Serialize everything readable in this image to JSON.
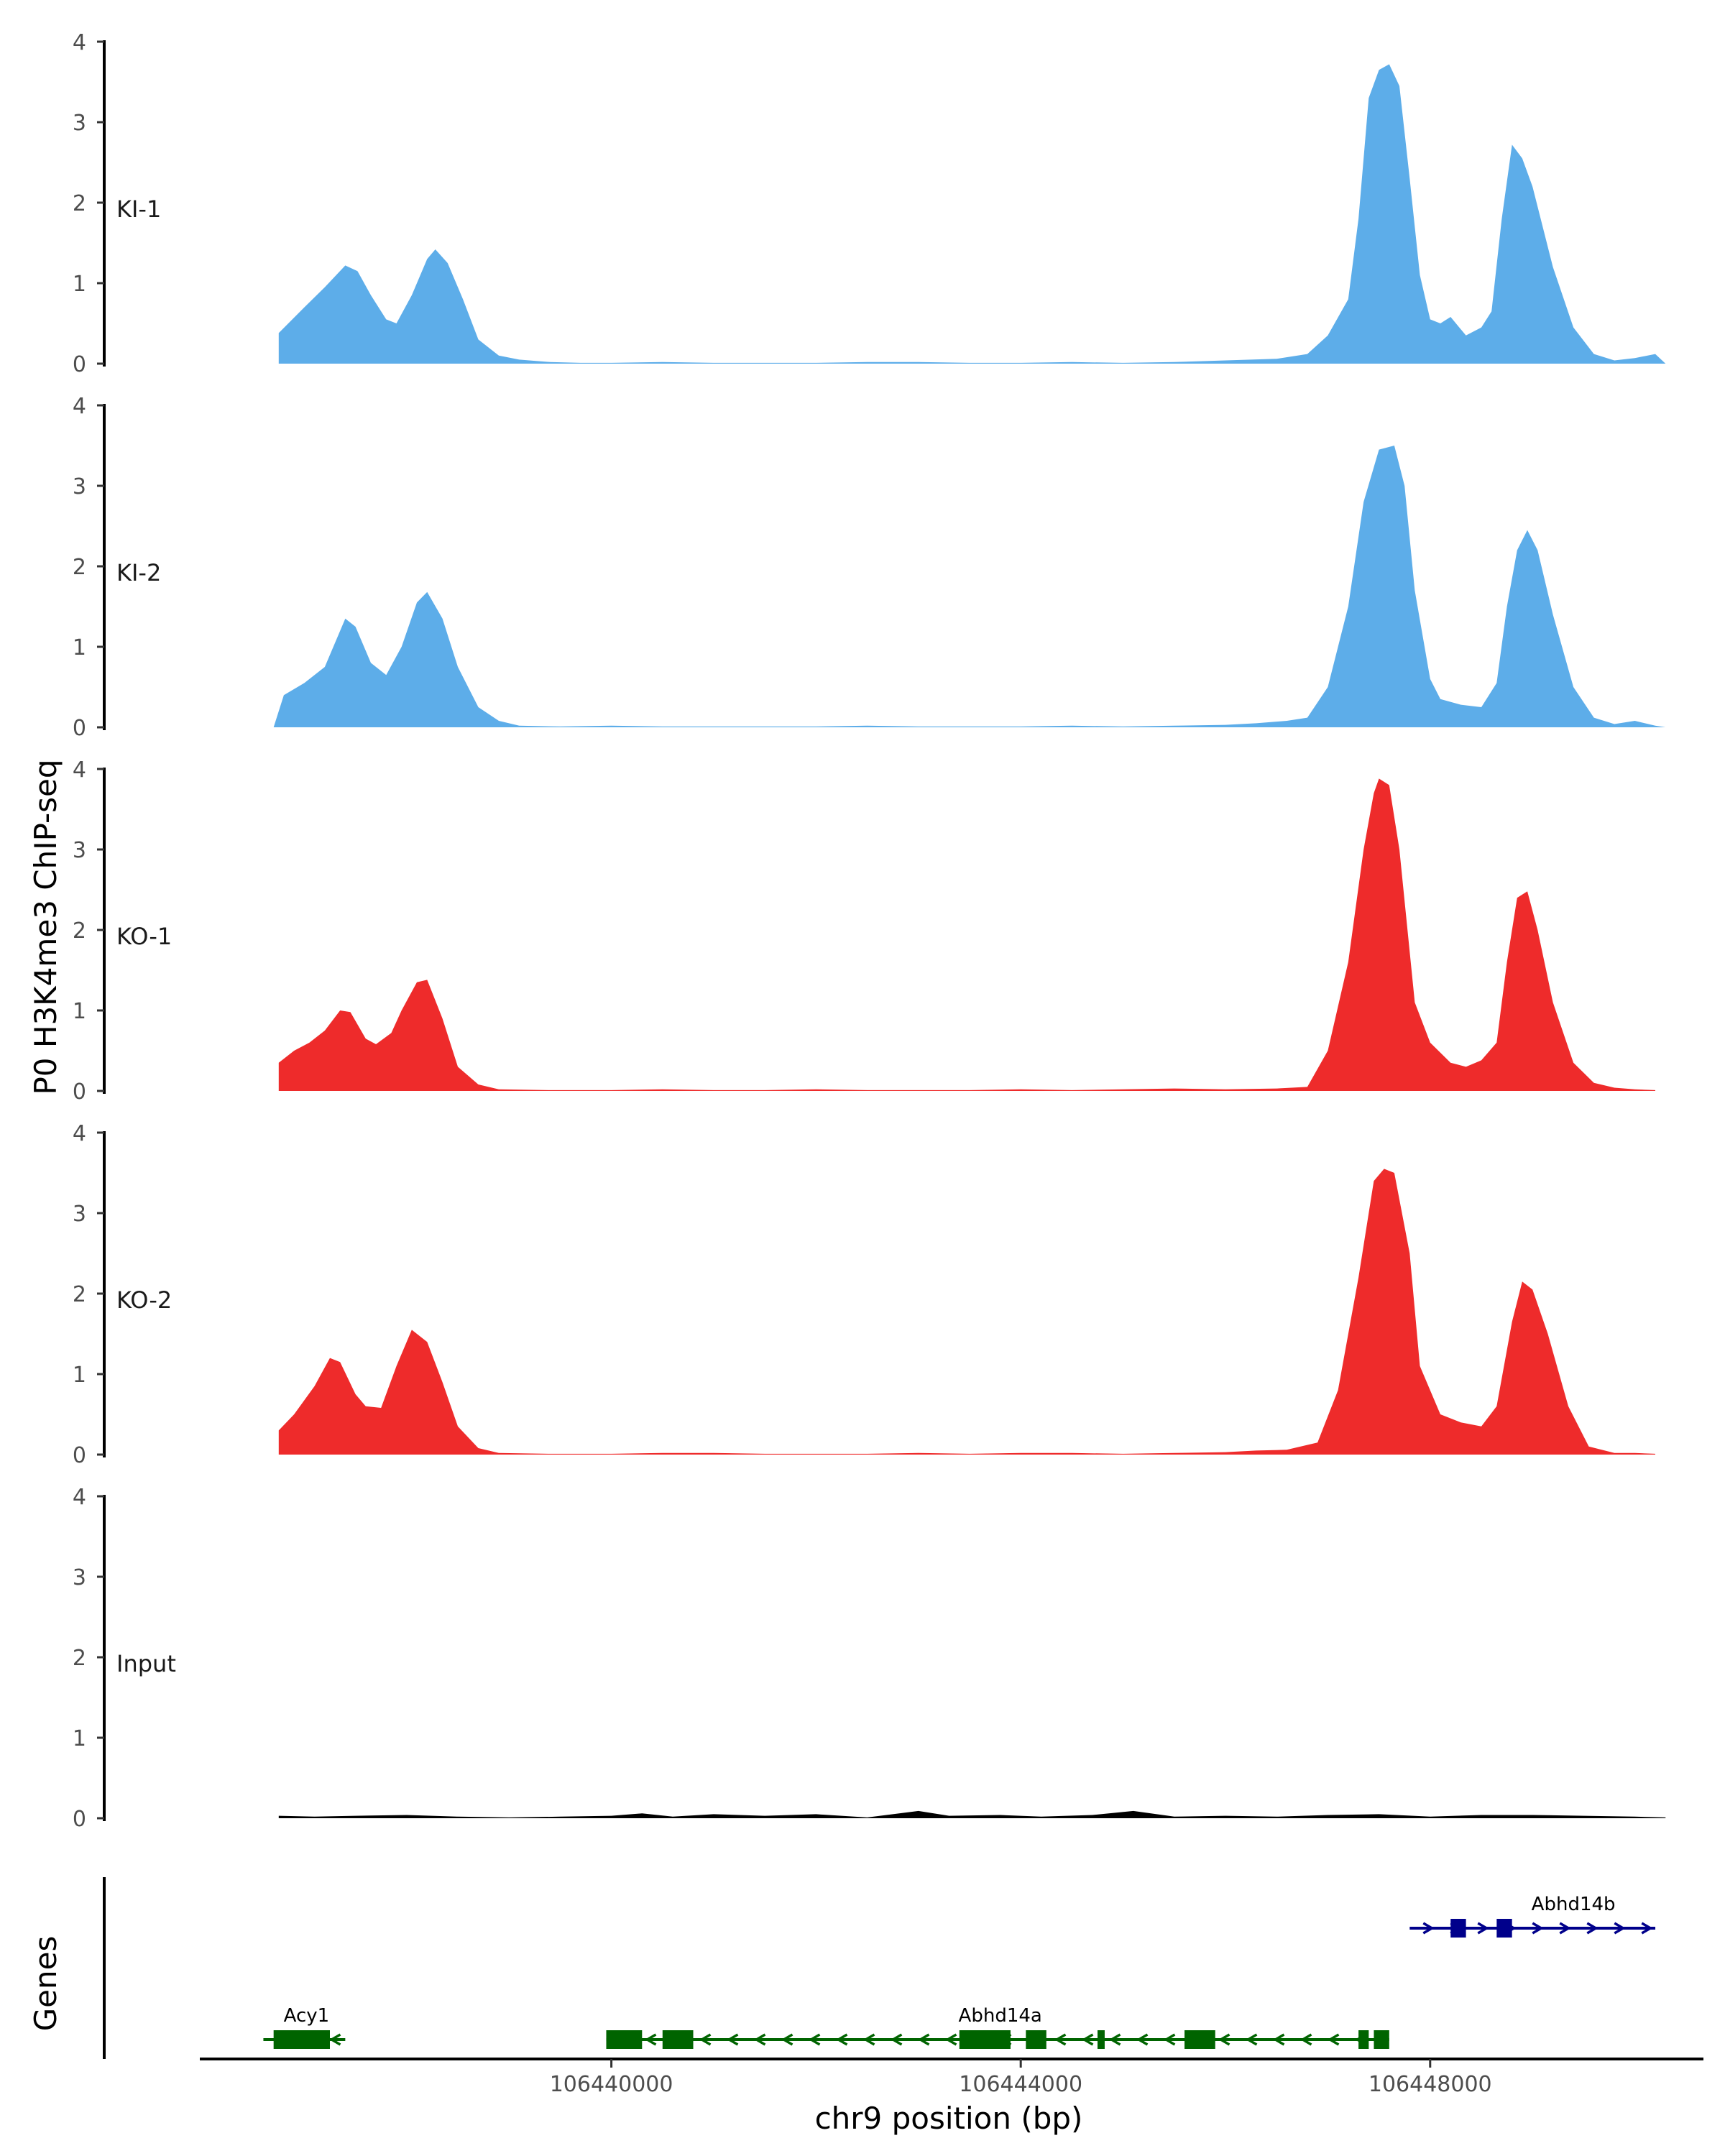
{
  "chart_data": {
    "type": "area",
    "title": "",
    "ylabel": "P0 H3K4me3 ChIP-seq",
    "xlabel": "chr9 position (bp)",
    "chromosome": "chr9",
    "xlim": [
      106436000,
      106450600
    ],
    "ylim": [
      0,
      4
    ],
    "y_ticks": [
      "0",
      "1",
      "2",
      "3",
      "4"
    ],
    "x_ticks": [
      {
        "value": 106440000,
        "label": "106440000"
      },
      {
        "value": 106444000,
        "label": "106444000"
      },
      {
        "value": 106448000,
        "label": "106448000"
      }
    ],
    "series": [
      {
        "name": "KI-1",
        "color": "#5dade9",
        "points": [
          [
            106436750,
            0.38
          ],
          [
            106437000,
            0.7
          ],
          [
            106437200,
            0.95
          ],
          [
            106437400,
            1.22
          ],
          [
            106437520,
            1.15
          ],
          [
            106437650,
            0.85
          ],
          [
            106437800,
            0.55
          ],
          [
            106437900,
            0.5
          ],
          [
            106438050,
            0.85
          ],
          [
            106438200,
            1.3
          ],
          [
            106438280,
            1.42
          ],
          [
            106438400,
            1.25
          ],
          [
            106438550,
            0.8
          ],
          [
            106438700,
            0.3
          ],
          [
            106438900,
            0.1
          ],
          [
            106439100,
            0.05
          ],
          [
            106439400,
            0.02
          ],
          [
            106439700,
            0.01
          ],
          [
            106440000,
            0.01
          ],
          [
            106440500,
            0.02
          ],
          [
            106441000,
            0.01
          ],
          [
            106442000,
            0.01
          ],
          [
            106442500,
            0.02
          ],
          [
            106443000,
            0.02
          ],
          [
            106443500,
            0.01
          ],
          [
            106444000,
            0.01
          ],
          [
            106444500,
            0.02
          ],
          [
            106445000,
            0.01
          ],
          [
            106445500,
            0.02
          ],
          [
            106446000,
            0.04
          ],
          [
            106446500,
            0.06
          ],
          [
            106446800,
            0.12
          ],
          [
            106447000,
            0.35
          ],
          [
            106447200,
            0.8
          ],
          [
            106447300,
            1.8
          ],
          [
            106447400,
            3.3
          ],
          [
            106447500,
            3.65
          ],
          [
            106447600,
            3.72
          ],
          [
            106447700,
            3.45
          ],
          [
            106447800,
            2.3
          ],
          [
            106447900,
            1.1
          ],
          [
            106448000,
            0.55
          ],
          [
            106448100,
            0.5
          ],
          [
            106448200,
            0.58
          ],
          [
            106448350,
            0.35
          ],
          [
            106448500,
            0.45
          ],
          [
            106448600,
            0.65
          ],
          [
            106448700,
            1.8
          ],
          [
            106448800,
            2.72
          ],
          [
            106448900,
            2.55
          ],
          [
            106449000,
            2.2
          ],
          [
            106449200,
            1.2
          ],
          [
            106449400,
            0.45
          ],
          [
            106449600,
            0.12
          ],
          [
            106449800,
            0.04
          ],
          [
            106450000,
            0.07
          ],
          [
            106450200,
            0.12
          ],
          [
            106450300,
            0.0
          ]
        ]
      },
      {
        "name": "KI-2",
        "color": "#5dade9",
        "points": [
          [
            106436700,
            0.0
          ],
          [
            106436800,
            0.4
          ],
          [
            106437000,
            0.55
          ],
          [
            106437200,
            0.75
          ],
          [
            106437400,
            1.35
          ],
          [
            106437500,
            1.25
          ],
          [
            106437650,
            0.8
          ],
          [
            106437800,
            0.65
          ],
          [
            106437950,
            1.0
          ],
          [
            106438100,
            1.55
          ],
          [
            106438200,
            1.68
          ],
          [
            106438350,
            1.35
          ],
          [
            106438500,
            0.75
          ],
          [
            106438700,
            0.25
          ],
          [
            106438900,
            0.08
          ],
          [
            106439100,
            0.02
          ],
          [
            106439500,
            0.01
          ],
          [
            106440000,
            0.02
          ],
          [
            106440500,
            0.01
          ],
          [
            106441000,
            0.01
          ],
          [
            106441500,
            0.01
          ],
          [
            106442000,
            0.01
          ],
          [
            106442500,
            0.02
          ],
          [
            106443000,
            0.01
          ],
          [
            106443500,
            0.01
          ],
          [
            106444000,
            0.01
          ],
          [
            106444500,
            0.02
          ],
          [
            106445000,
            0.01
          ],
          [
            106445500,
            0.02
          ],
          [
            106446000,
            0.03
          ],
          [
            106446300,
            0.05
          ],
          [
            106446600,
            0.08
          ],
          [
            106446800,
            0.12
          ],
          [
            106447000,
            0.5
          ],
          [
            106447200,
            1.5
          ],
          [
            106447350,
            2.8
          ],
          [
            106447500,
            3.45
          ],
          [
            106447650,
            3.5
          ],
          [
            106447750,
            3.0
          ],
          [
            106447850,
            1.7
          ],
          [
            106448000,
            0.6
          ],
          [
            106448100,
            0.35
          ],
          [
            106448300,
            0.28
          ],
          [
            106448500,
            0.25
          ],
          [
            106448650,
            0.55
          ],
          [
            106448750,
            1.5
          ],
          [
            106448850,
            2.2
          ],
          [
            106448950,
            2.45
          ],
          [
            106449050,
            2.2
          ],
          [
            106449200,
            1.4
          ],
          [
            106449400,
            0.5
          ],
          [
            106449600,
            0.12
          ],
          [
            106449800,
            0.04
          ],
          [
            106450000,
            0.08
          ],
          [
            106450200,
            0.02
          ],
          [
            106450300,
            0.0
          ]
        ]
      },
      {
        "name": "KO-1",
        "color": "#ee2b2b",
        "points": [
          [
            106436750,
            0.35
          ],
          [
            106436900,
            0.5
          ],
          [
            106437050,
            0.6
          ],
          [
            106437200,
            0.75
          ],
          [
            106437350,
            1.0
          ],
          [
            106437450,
            0.98
          ],
          [
            106437600,
            0.65
          ],
          [
            106437700,
            0.58
          ],
          [
            106437850,
            0.72
          ],
          [
            106437950,
            1.0
          ],
          [
            106438100,
            1.35
          ],
          [
            106438200,
            1.38
          ],
          [
            106438350,
            0.9
          ],
          [
            106438500,
            0.3
          ],
          [
            106438700,
            0.08
          ],
          [
            106438900,
            0.02
          ],
          [
            106439400,
            0.01
          ],
          [
            106440000,
            0.01
          ],
          [
            106440500,
            0.02
          ],
          [
            106441000,
            0.01
          ],
          [
            106441500,
            0.01
          ],
          [
            106442000,
            0.02
          ],
          [
            106442500,
            0.01
          ],
          [
            106443000,
            0.01
          ],
          [
            106443500,
            0.01
          ],
          [
            106444000,
            0.02
          ],
          [
            106444500,
            0.01
          ],
          [
            106445000,
            0.02
          ],
          [
            106445500,
            0.03
          ],
          [
            106446000,
            0.02
          ],
          [
            106446500,
            0.03
          ],
          [
            106446800,
            0.05
          ],
          [
            106447000,
            0.5
          ],
          [
            106447200,
            1.6
          ],
          [
            106447350,
            3.0
          ],
          [
            106447450,
            3.7
          ],
          [
            106447500,
            3.88
          ],
          [
            106447600,
            3.8
          ],
          [
            106447700,
            3.0
          ],
          [
            106447850,
            1.1
          ],
          [
            106448000,
            0.6
          ],
          [
            106448200,
            0.35
          ],
          [
            106448350,
            0.3
          ],
          [
            106448500,
            0.38
          ],
          [
            106448650,
            0.6
          ],
          [
            106448750,
            1.6
          ],
          [
            106448850,
            2.4
          ],
          [
            106448950,
            2.48
          ],
          [
            106449050,
            2.0
          ],
          [
            106449200,
            1.1
          ],
          [
            106449400,
            0.35
          ],
          [
            106449600,
            0.1
          ],
          [
            106449800,
            0.04
          ],
          [
            106450000,
            0.02
          ],
          [
            106450200,
            0.01
          ]
        ]
      },
      {
        "name": "KO-2",
        "color": "#ee2b2b",
        "points": [
          [
            106436750,
            0.3
          ],
          [
            106436900,
            0.5
          ],
          [
            106437100,
            0.85
          ],
          [
            106437250,
            1.2
          ],
          [
            106437350,
            1.15
          ],
          [
            106437500,
            0.75
          ],
          [
            106437600,
            0.6
          ],
          [
            106437750,
            0.58
          ],
          [
            106437900,
            1.1
          ],
          [
            106438050,
            1.55
          ],
          [
            106438200,
            1.4
          ],
          [
            106438350,
            0.9
          ],
          [
            106438500,
            0.35
          ],
          [
            106438700,
            0.08
          ],
          [
            106438900,
            0.02
          ],
          [
            106439400,
            0.01
          ],
          [
            106440000,
            0.01
          ],
          [
            106440500,
            0.02
          ],
          [
            106441000,
            0.02
          ],
          [
            106441500,
            0.01
          ],
          [
            106442000,
            0.01
          ],
          [
            106442500,
            0.01
          ],
          [
            106443000,
            0.02
          ],
          [
            106443500,
            0.01
          ],
          [
            106444000,
            0.02
          ],
          [
            106444500,
            0.02
          ],
          [
            106445000,
            0.01
          ],
          [
            106445500,
            0.02
          ],
          [
            106446000,
            0.03
          ],
          [
            106446300,
            0.05
          ],
          [
            106446600,
            0.06
          ],
          [
            106446900,
            0.15
          ],
          [
            106447100,
            0.8
          ],
          [
            106447300,
            2.2
          ],
          [
            106447450,
            3.4
          ],
          [
            106447550,
            3.55
          ],
          [
            106447650,
            3.5
          ],
          [
            106447800,
            2.5
          ],
          [
            106447900,
            1.1
          ],
          [
            106448100,
            0.5
          ],
          [
            106448300,
            0.4
          ],
          [
            106448500,
            0.35
          ],
          [
            106448650,
            0.6
          ],
          [
            106448800,
            1.65
          ],
          [
            106448900,
            2.15
          ],
          [
            106449000,
            2.05
          ],
          [
            106449150,
            1.5
          ],
          [
            106449350,
            0.6
          ],
          [
            106449550,
            0.1
          ],
          [
            106449800,
            0.02
          ],
          [
            106450000,
            0.02
          ],
          [
            106450200,
            0.01
          ]
        ]
      },
      {
        "name": "Input",
        "color": "#000000",
        "points": [
          [
            106436750,
            0.03
          ],
          [
            106437100,
            0.02
          ],
          [
            106437500,
            0.03
          ],
          [
            106438000,
            0.04
          ],
          [
            106438500,
            0.02
          ],
          [
            106439000,
            0.01
          ],
          [
            106439500,
            0.02
          ],
          [
            106440000,
            0.03
          ],
          [
            106440300,
            0.06
          ],
          [
            106440600,
            0.02
          ],
          [
            106441000,
            0.05
          ],
          [
            106441500,
            0.03
          ],
          [
            106442000,
            0.05
          ],
          [
            106442500,
            0.01
          ],
          [
            106443000,
            0.09
          ],
          [
            106443300,
            0.03
          ],
          [
            106443800,
            0.04
          ],
          [
            106444200,
            0.02
          ],
          [
            106444700,
            0.04
          ],
          [
            106445100,
            0.09
          ],
          [
            106445500,
            0.02
          ],
          [
            106446000,
            0.03
          ],
          [
            106446500,
            0.02
          ],
          [
            106447000,
            0.04
          ],
          [
            106447500,
            0.05
          ],
          [
            106448000,
            0.02
          ],
          [
            106448500,
            0.04
          ],
          [
            106449000,
            0.04
          ],
          [
            106449500,
            0.03
          ],
          [
            106450000,
            0.02
          ],
          [
            106450300,
            0.01
          ]
        ]
      }
    ],
    "gene_track": {
      "label": "Genes",
      "genes": [
        {
          "name": "Acy1",
          "strand": "-",
          "color": "#006400",
          "row": 0,
          "start": 106436600,
          "end": 106437400,
          "exons": [
            [
              106436700,
              106437250
            ]
          ]
        },
        {
          "name": "Abhd14a",
          "strand": "-",
          "color": "#006400",
          "row": 0,
          "start": 106439950,
          "end": 106447600,
          "exons": [
            [
              106439950,
              106440300
            ],
            [
              106440500,
              106440800
            ],
            [
              106443400,
              106443900
            ],
            [
              106444050,
              106444250
            ],
            [
              106444750,
              106444820
            ],
            [
              106445600,
              106445900
            ],
            [
              106447300,
              106447400
            ],
            [
              106447450,
              106447600
            ]
          ]
        },
        {
          "name": "Abhd14b",
          "strand": "+",
          "color": "#00008b",
          "row": 1,
          "start": 106447800,
          "end": 106450200,
          "exons": [
            [
              106448200,
              106448350
            ],
            [
              106448650,
              106448800
            ]
          ]
        }
      ]
    }
  }
}
